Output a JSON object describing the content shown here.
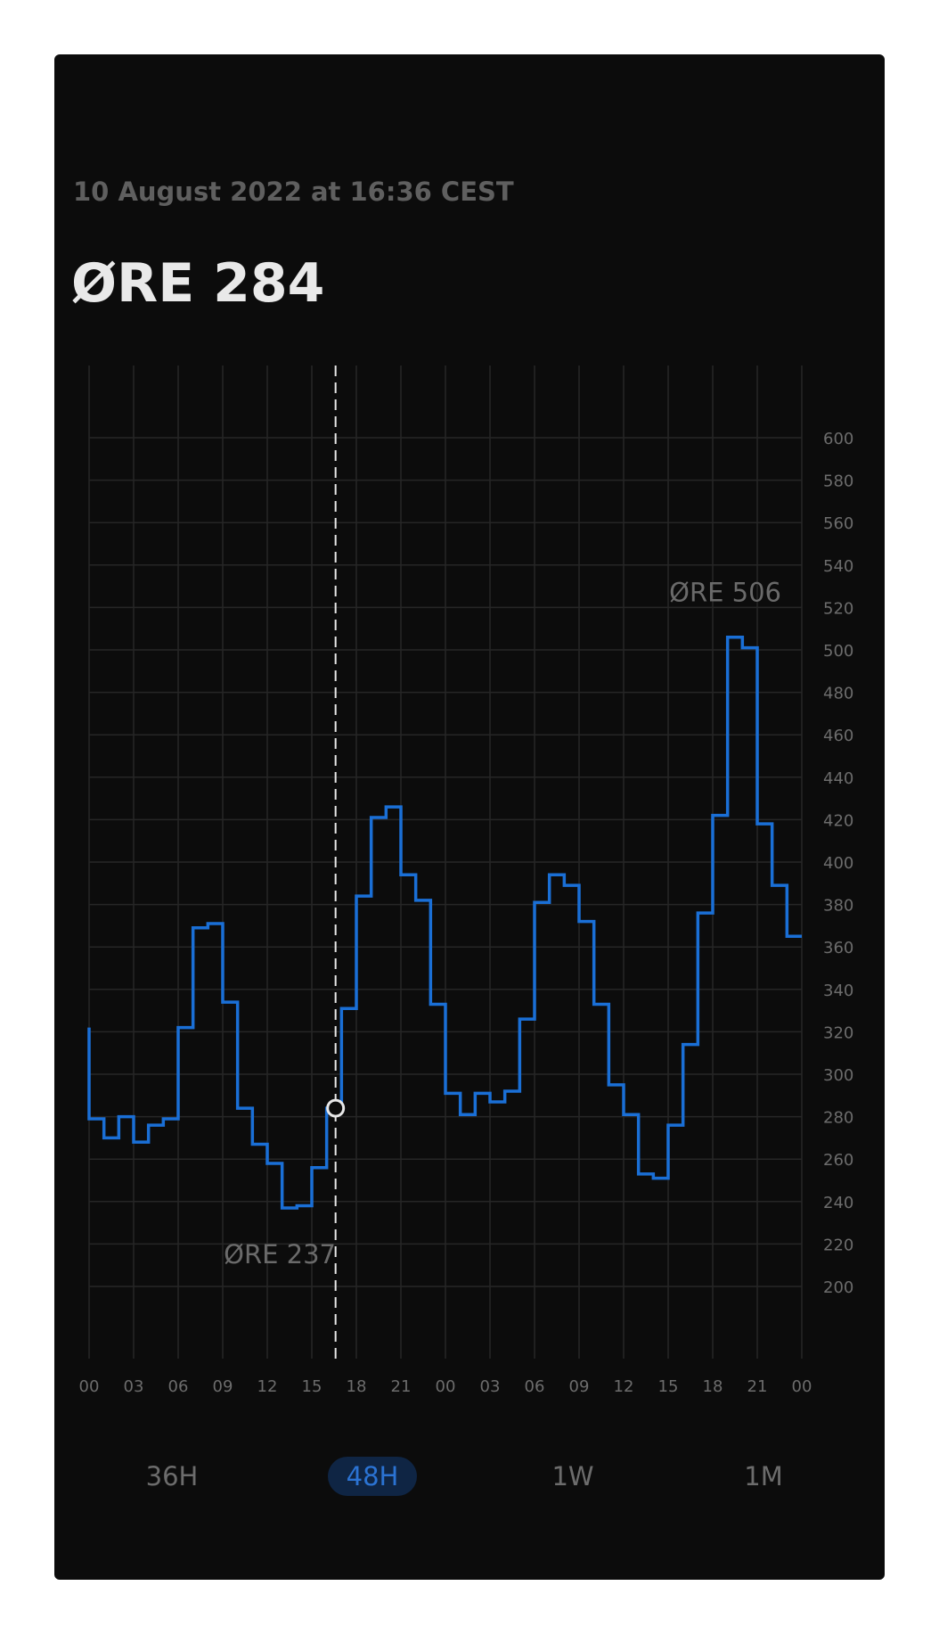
{
  "header": {
    "timestamp": "10 August 2022 at 16:36 CEST",
    "current_price": "ØRE 284"
  },
  "range_tabs": [
    {
      "label": "36H",
      "active": false
    },
    {
      "label": "48H",
      "active": true
    },
    {
      "label": "1W",
      "active": false
    },
    {
      "label": "1M",
      "active": false
    }
  ],
  "colors": {
    "line": "#1a6fd6",
    "grid": "#262626",
    "cursor": "#e8e8e8",
    "active_tab_bg": "#0f2544",
    "active_tab_text": "#2b73d3"
  },
  "chart_data": {
    "type": "line",
    "step": true,
    "x_tick_labels": [
      "00",
      "03",
      "06",
      "09",
      "12",
      "15",
      "18",
      "21",
      "00",
      "03",
      "06",
      "09",
      "12",
      "15",
      "18",
      "21",
      "00"
    ],
    "x_range_hours": [
      0,
      48
    ],
    "y_ticks": [
      200,
      220,
      240,
      260,
      280,
      300,
      320,
      340,
      360,
      380,
      400,
      420,
      440,
      460,
      480,
      500,
      520,
      540,
      560,
      580,
      600
    ],
    "ylim": [
      165,
      632
    ],
    "y_axis_position": "right",
    "grid": true,
    "values": [
      279,
      270,
      280,
      268,
      276,
      279,
      322,
      369,
      371,
      334,
      284,
      267,
      258,
      237,
      238,
      256,
      284,
      331,
      384,
      421,
      426,
      394,
      382,
      333,
      291,
      281,
      291,
      287,
      292,
      326,
      381,
      394,
      389,
      372,
      333,
      295,
      281,
      253,
      251,
      276,
      314,
      376,
      422,
      506,
      501,
      418,
      389,
      365
    ],
    "min_label": "ØRE 237",
    "max_label": "ØRE 506",
    "cursor_hour": 16.6,
    "cursor_value": 284,
    "initial_value": 322
  }
}
